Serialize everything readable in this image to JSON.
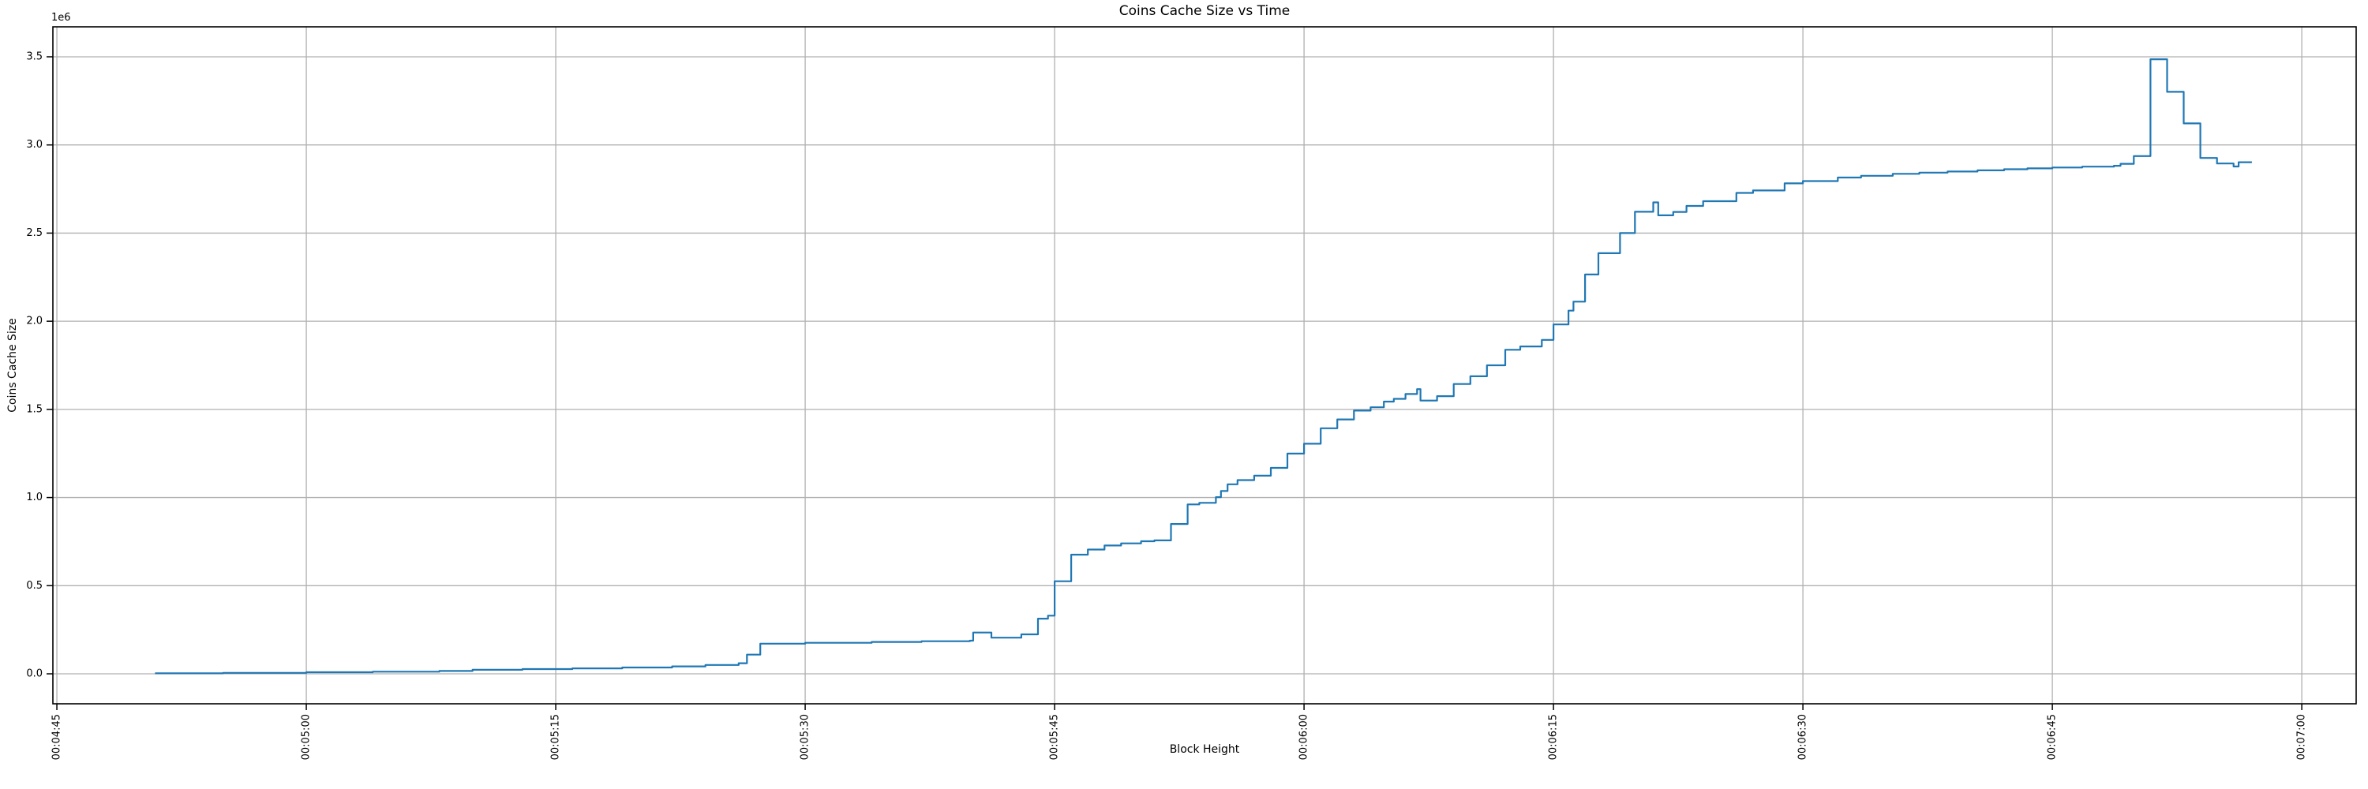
{
  "figure": {
    "background": "#ffffff"
  },
  "chart_data": {
    "type": "line",
    "title": "Coins Cache Size vs Time",
    "xlabel": "Block Height",
    "ylabel": "Coins Cache Size",
    "offset_text": "1e6",
    "line_color": "#1f77b4",
    "grid_color": "#b0b0b0",
    "spine_color": "#000000",
    "grid": true,
    "legend_position": "none",
    "x_tick_labels": [
      "00:04:45",
      "00:05:00",
      "00:05:15",
      "00:05:30",
      "00:05:45",
      "00:06:00",
      "00:06:15",
      "00:06:30",
      "00:06:45",
      "00:07:00"
    ],
    "x_tick_seconds": [
      285,
      300,
      315,
      330,
      345,
      360,
      375,
      390,
      405,
      420
    ],
    "y_tick_labels": [
      "0.0",
      "0.5",
      "1.0",
      "1.5",
      "2.0",
      "2.5",
      "3.0",
      "3.5"
    ],
    "y_tick_values": [
      0,
      500000,
      1000000,
      1500000,
      2000000,
      2500000,
      3000000,
      3500000
    ],
    "xlim_seconds": [
      284.76,
      423.27
    ],
    "ylim": [
      -170000,
      3670000
    ],
    "series": [
      {
        "name": "coins_cache_size",
        "step": "post",
        "points": [
          [
            290.9,
            3000
          ],
          [
            295,
            5500
          ],
          [
            300,
            9000
          ],
          [
            304,
            12000
          ],
          [
            308,
            16000
          ],
          [
            310,
            23000
          ],
          [
            313,
            27000
          ],
          [
            316,
            31000
          ],
          [
            319,
            36000
          ],
          [
            322,
            42000
          ],
          [
            324,
            50000
          ],
          [
            326,
            60000
          ],
          [
            326.5,
            109000
          ],
          [
            327.3,
            171000
          ],
          [
            330,
            176000
          ],
          [
            334,
            181000
          ],
          [
            337,
            185000
          ],
          [
            339.9,
            188000
          ],
          [
            340.1,
            234000
          ],
          [
            341.2,
            205000
          ],
          [
            343,
            224000
          ],
          [
            344,
            313000
          ],
          [
            344.6,
            330000
          ],
          [
            345,
            525000
          ],
          [
            346,
            676000
          ],
          [
            347,
            705000
          ],
          [
            348,
            728000
          ],
          [
            349,
            740000
          ],
          [
            350.2,
            752000
          ],
          [
            351,
            757000
          ],
          [
            352,
            850000
          ],
          [
            353,
            961000
          ],
          [
            353.7,
            970000
          ],
          [
            354.7,
            1002000
          ],
          [
            355,
            1037000
          ],
          [
            355.4,
            1075000
          ],
          [
            356,
            1099000
          ],
          [
            357,
            1124000
          ],
          [
            358,
            1168000
          ],
          [
            359,
            1249000
          ],
          [
            360,
            1305000
          ],
          [
            361,
            1393000
          ],
          [
            362,
            1443000
          ],
          [
            363,
            1493000
          ],
          [
            364,
            1512000
          ],
          [
            364.8,
            1544000
          ],
          [
            365.4,
            1560000
          ],
          [
            366.1,
            1587000
          ],
          [
            366.8,
            1615000
          ],
          [
            367,
            1550000
          ],
          [
            368,
            1575000
          ],
          [
            369,
            1644000
          ],
          [
            370,
            1688000
          ],
          [
            371,
            1750000
          ],
          [
            372.1,
            1838000
          ],
          [
            373,
            1857000
          ],
          [
            374.3,
            1894000
          ],
          [
            375,
            1982000
          ],
          [
            375.9,
            2060000
          ],
          [
            376.2,
            2111000
          ],
          [
            376.9,
            2265000
          ],
          [
            377.7,
            2386000
          ],
          [
            379,
            2500000
          ],
          [
            379.9,
            2621000
          ],
          [
            381,
            2674000
          ],
          [
            381.3,
            2601000
          ],
          [
            382.2,
            2620000
          ],
          [
            383,
            2654000
          ],
          [
            384,
            2681000
          ],
          [
            386,
            2728000
          ],
          [
            387,
            2742000
          ],
          [
            388.9,
            2782000
          ],
          [
            390,
            2795000
          ],
          [
            392.1,
            2815000
          ],
          [
            393.5,
            2825000
          ],
          [
            395.4,
            2836000
          ],
          [
            397,
            2843000
          ],
          [
            398.7,
            2849000
          ],
          [
            400.5,
            2856000
          ],
          [
            402.1,
            2862000
          ],
          [
            403.5,
            2867000
          ],
          [
            405,
            2872000
          ],
          [
            406.8,
            2877000
          ],
          [
            408.7,
            2882000
          ],
          [
            409.1,
            2893000
          ],
          [
            409.9,
            2937000
          ],
          [
            410.9,
            3486000
          ],
          [
            411.9,
            3301000
          ],
          [
            412.9,
            3122000
          ],
          [
            413.9,
            2926000
          ],
          [
            414.9,
            2895000
          ],
          [
            415.9,
            2878000
          ],
          [
            416.2,
            2902000
          ],
          [
            417,
            2902000
          ]
        ]
      }
    ]
  }
}
